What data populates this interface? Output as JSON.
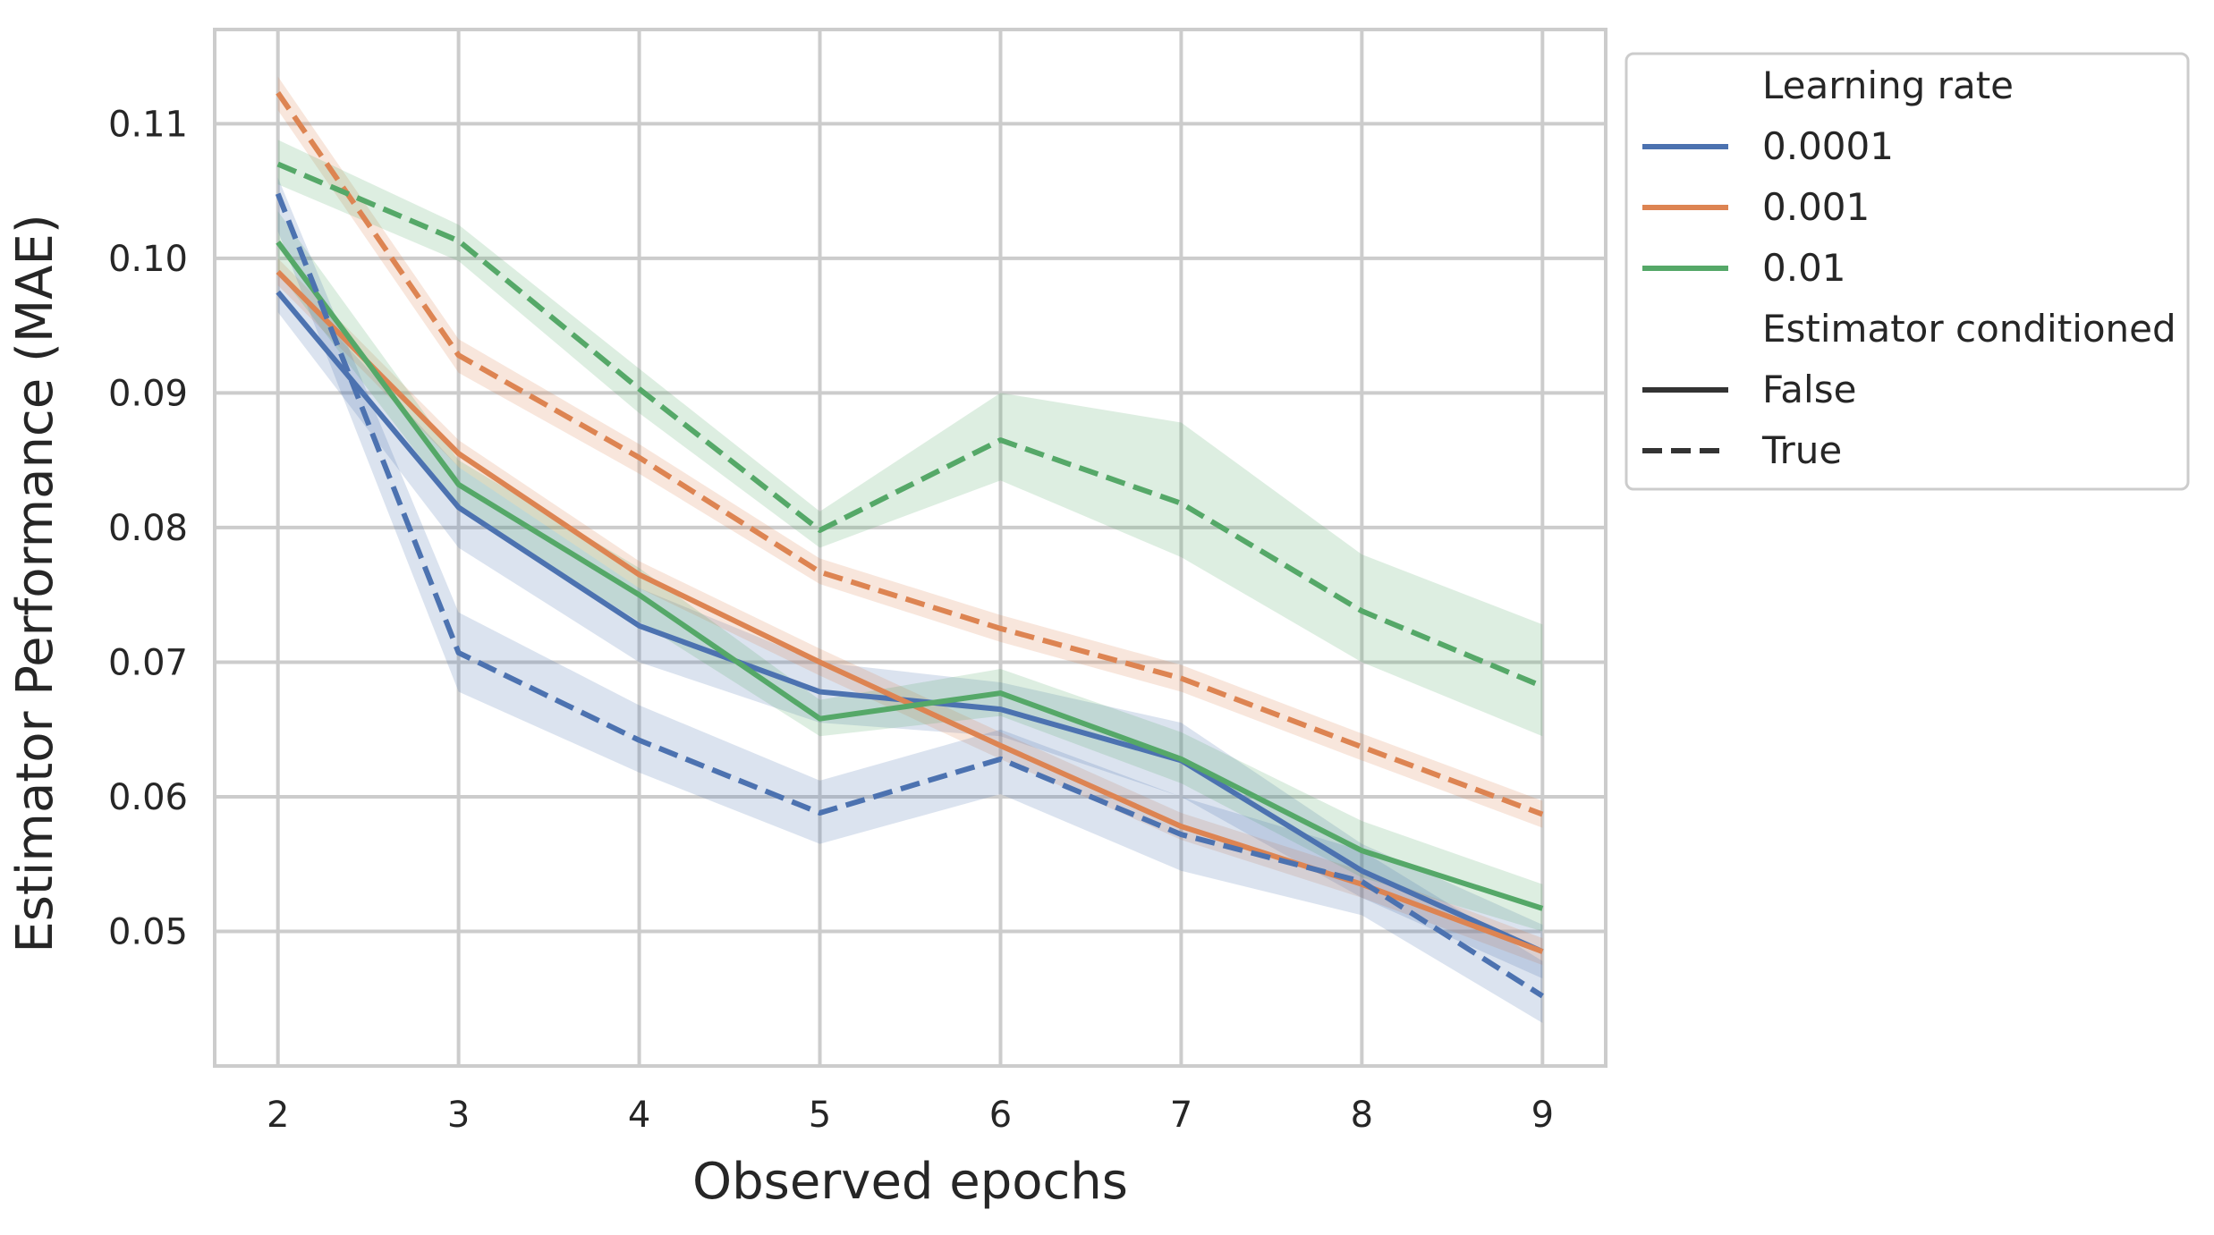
{
  "chart_data": {
    "type": "line",
    "xlabel": "Observed epochs",
    "ylabel": "Estimator Performance (MAE)",
    "x": [
      2,
      3,
      4,
      5,
      6,
      7,
      8,
      9
    ],
    "xlim": [
      1.65,
      9.35
    ],
    "ylim": [
      0.04,
      0.117
    ],
    "xticks": [
      "2",
      "3",
      "4",
      "5",
      "6",
      "7",
      "8",
      "9"
    ],
    "yticks": [
      {
        "value": 0.05,
        "label": "0.05"
      },
      {
        "value": 0.06,
        "label": "0.06"
      },
      {
        "value": 0.07,
        "label": "0.07"
      },
      {
        "value": 0.08,
        "label": "0.08"
      },
      {
        "value": 0.09,
        "label": "0.09"
      },
      {
        "value": 0.1,
        "label": "0.10"
      },
      {
        "value": 0.11,
        "label": "0.11"
      }
    ],
    "grid": true,
    "legend": {
      "placement": "outside-top-right",
      "hue_title": "Learning rate",
      "style_title": "Estimator conditioned",
      "hue_entries": [
        {
          "label": "0.0001",
          "color": "#4c72b0"
        },
        {
          "label": "0.001",
          "color": "#dd8452"
        },
        {
          "label": "0.01",
          "color": "#55a868"
        }
      ],
      "style_entries": [
        {
          "label": "False",
          "dash": "solid"
        },
        {
          "label": "True",
          "dash": "dashed"
        }
      ]
    },
    "series": [
      {
        "name": "0.0001",
        "conditioned": "False",
        "color": "#4c72b0",
        "dash": "solid",
        "values": [
          0.0975,
          0.0815,
          0.0727,
          0.0678,
          0.0665,
          0.0627,
          0.0545,
          0.0485
        ],
        "lower": [
          0.096,
          0.0785,
          0.07,
          0.0655,
          0.0645,
          0.06,
          0.0525,
          0.0465
        ],
        "upper": [
          0.099,
          0.0845,
          0.0755,
          0.07,
          0.0685,
          0.0655,
          0.0565,
          0.0505
        ]
      },
      {
        "name": "0.001",
        "conditioned": "False",
        "color": "#dd8452",
        "dash": "solid",
        "values": [
          0.099,
          0.0855,
          0.0765,
          0.07,
          0.0638,
          0.0578,
          0.0535,
          0.0485
        ],
        "lower": [
          0.098,
          0.0845,
          0.0755,
          0.069,
          0.0628,
          0.0568,
          0.0525,
          0.0475
        ],
        "upper": [
          0.1,
          0.0865,
          0.0775,
          0.071,
          0.0648,
          0.0588,
          0.0545,
          0.0495
        ]
      },
      {
        "name": "0.01",
        "conditioned": "False",
        "color": "#55a868",
        "dash": "solid",
        "values": [
          0.1012,
          0.0832,
          0.075,
          0.0658,
          0.0677,
          0.0628,
          0.056,
          0.0517
        ],
        "lower": [
          0.099,
          0.0815,
          0.073,
          0.0645,
          0.066,
          0.061,
          0.054,
          0.05
        ],
        "upper": [
          0.1035,
          0.085,
          0.077,
          0.0672,
          0.0695,
          0.0648,
          0.0582,
          0.0535
        ]
      },
      {
        "name": "0.0001",
        "conditioned": "True",
        "color": "#4c72b0",
        "dash": "dashed",
        "values": [
          0.1048,
          0.0707,
          0.0642,
          0.0588,
          0.0628,
          0.0572,
          0.0537,
          0.0452
        ],
        "lower": [
          0.102,
          0.0678,
          0.0618,
          0.0565,
          0.0602,
          0.0545,
          0.0512,
          0.0432
        ],
        "upper": [
          0.106,
          0.0737,
          0.0668,
          0.0612,
          0.065,
          0.06,
          0.056,
          0.0478
        ]
      },
      {
        "name": "0.001",
        "conditioned": "True",
        "color": "#dd8452",
        "dash": "dashed",
        "values": [
          0.1123,
          0.0928,
          0.0852,
          0.0767,
          0.0725,
          0.0688,
          0.0637,
          0.0587
        ],
        "lower": [
          0.111,
          0.0915,
          0.084,
          0.0758,
          0.0715,
          0.0678,
          0.0627,
          0.0577
        ],
        "upper": [
          0.1135,
          0.094,
          0.0862,
          0.0777,
          0.0735,
          0.0698,
          0.0647,
          0.0597
        ]
      },
      {
        "name": "0.01",
        "conditioned": "True",
        "color": "#55a868",
        "dash": "dashed",
        "values": [
          0.107,
          0.1013,
          0.0903,
          0.0798,
          0.0865,
          0.0818,
          0.0738,
          0.0682
        ],
        "lower": [
          0.1055,
          0.0998,
          0.0885,
          0.0785,
          0.0835,
          0.0778,
          0.07,
          0.0645
        ],
        "upper": [
          0.1088,
          0.1025,
          0.0918,
          0.0812,
          0.09,
          0.0878,
          0.078,
          0.0728
        ]
      }
    ]
  }
}
